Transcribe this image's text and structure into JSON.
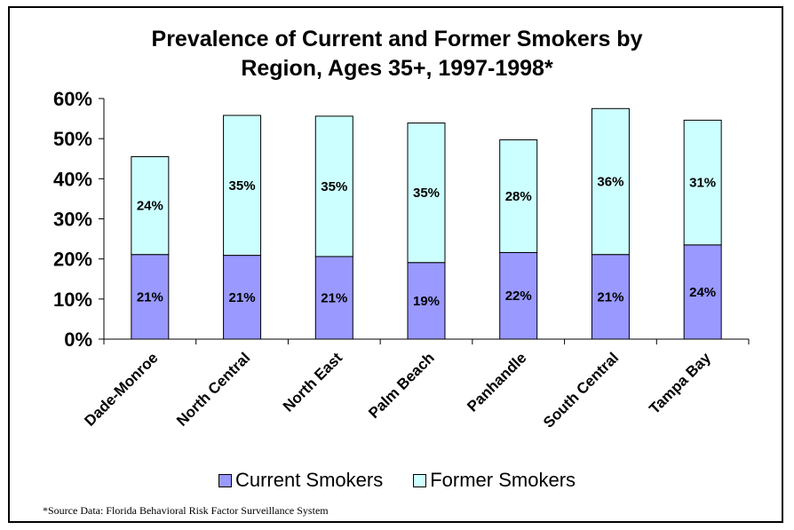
{
  "chart_data": {
    "type": "bar",
    "stacked": true,
    "title_lines": [
      "Prevalence of Current and Former Smokers by",
      "Region, Ages 35+, 1997-1998*"
    ],
    "categories": [
      "Dade-Monroe",
      "North Central",
      "North East",
      "Palm Beach",
      "Panhandle",
      "South Central",
      "Tampa Bay"
    ],
    "series": [
      {
        "name": "Current Smokers",
        "values": [
          21.1,
          20.9,
          20.6,
          19.1,
          21.6,
          21.1,
          23.5
        ],
        "labels": [
          "21%",
          "21%",
          "21%",
          "19%",
          "22%",
          "21%",
          "24%"
        ],
        "color": "#9999ff"
      },
      {
        "name": "Former Smokers",
        "values": [
          24.4,
          34.9,
          35.0,
          34.8,
          28.1,
          36.4,
          31.1
        ],
        "labels": [
          "24%",
          "35%",
          "35%",
          "35%",
          "28%",
          "36%",
          "31%"
        ],
        "color": "#ccffff"
      }
    ],
    "ylim": [
      0,
      60
    ],
    "yticks": [
      "0%",
      "10%",
      "20%",
      "30%",
      "40%",
      "50%",
      "60%"
    ],
    "grid": false,
    "legend_position": "bottom"
  },
  "source_note": "*Source Data: Florida Behavioral Risk Factor Surveillance System"
}
